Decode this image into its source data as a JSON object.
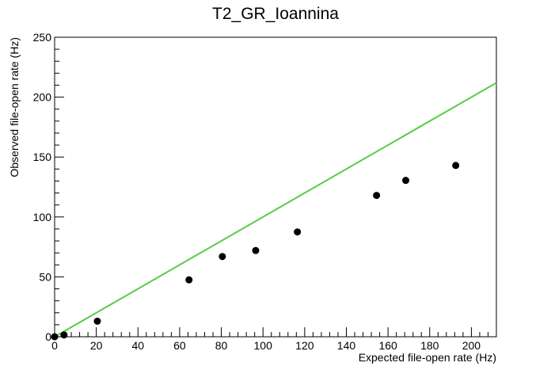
{
  "chart_data": {
    "type": "scatter",
    "title": "T2_GR_Ioannina",
    "xlabel": "Expected file-open rate (Hz)",
    "ylabel": "Observed file-open rate (Hz)",
    "xlim": [
      0,
      212
    ],
    "ylim": [
      0,
      250
    ],
    "xticks": [
      0,
      20,
      40,
      60,
      80,
      100,
      120,
      140,
      160,
      180,
      200
    ],
    "yticks": [
      0,
      50,
      100,
      150,
      200,
      250
    ],
    "x_tick_labels": [
      "0",
      "20",
      "40",
      "60",
      "80",
      "100",
      "120",
      "140",
      "160",
      "180",
      "200"
    ],
    "y_tick_labels": [
      "0",
      "50",
      "100",
      "150",
      "200",
      "250"
    ],
    "grid": false,
    "series": [
      {
        "marker": "circle",
        "color": "#000000",
        "points": [
          {
            "x": 0,
            "y": 0
          },
          {
            "x": 4.5,
            "y": 1.5
          },
          {
            "x": 20.5,
            "y": 13
          },
          {
            "x": 64.5,
            "y": 47.5
          },
          {
            "x": 80.5,
            "y": 67
          },
          {
            "x": 96.5,
            "y": 72
          },
          {
            "x": 116.5,
            "y": 87.5
          },
          {
            "x": 154.5,
            "y": 118
          },
          {
            "x": 168.5,
            "y": 130.5
          },
          {
            "x": 192.5,
            "y": 143
          }
        ]
      }
    ],
    "reference_line": {
      "color": "#55cc44",
      "from": {
        "x": 0,
        "y": 0
      },
      "to": {
        "x": 212,
        "y": 212
      }
    }
  }
}
